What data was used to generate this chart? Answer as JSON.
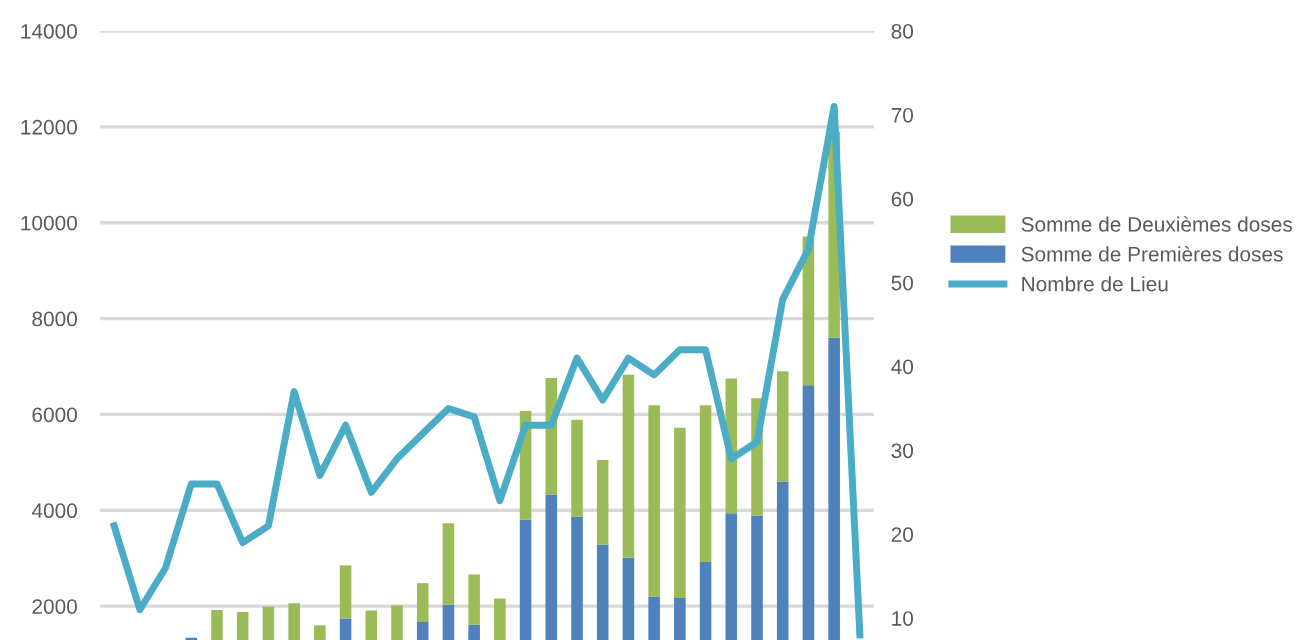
{
  "chart_data": {
    "type": "bar",
    "stacked": true,
    "categories": [
      null,
      null,
      null,
      null,
      null,
      null,
      null,
      null,
      null,
      null,
      null,
      null,
      null,
      null,
      null,
      null,
      null,
      null,
      null,
      null,
      null,
      null,
      null,
      null,
      null,
      null,
      null,
      null,
      null,
      null
    ],
    "series": [
      {
        "name": "Somme de Premières doses",
        "color": "#4f81bd",
        "values": [
          null,
          null,
          null,
          1340,
          null,
          null,
          null,
          null,
          null,
          1740,
          null,
          null,
          1670,
          2030,
          1610,
          null,
          3800,
          4330,
          3870,
          3280,
          3010,
          2200,
          2170,
          2920,
          3940,
          3890,
          4600,
          6610,
          7600,
          null
        ]
      },
      {
        "name": "Somme de Deuxièmes doses",
        "color": "#9bbb59",
        "values": [
          null,
          null,
          null,
          null,
          1920,
          1880,
          1990,
          2060,
          1600,
          1110,
          1910,
          2020,
          810,
          1700,
          1050,
          2160,
          2270,
          2430,
          2020,
          1770,
          3820,
          3990,
          3550,
          3270,
          2810,
          2450,
          2300,
          3100,
          4300,
          null
        ]
      },
      {
        "name": "Nombre de Lieu",
        "type": "line",
        "axis": "y2",
        "color": "#4bacc6",
        "values": [
          21,
          11,
          16,
          26,
          26,
          19,
          21,
          37,
          27,
          33,
          25,
          29,
          32,
          35,
          34,
          24,
          33,
          33,
          41,
          36,
          41,
          39,
          42,
          42,
          29,
          31,
          48,
          54,
          71,
          8
        ]
      }
    ],
    "ylim": [
      0,
      14000
    ],
    "yticks": [
      2000,
      4000,
      6000,
      8000,
      10000,
      12000,
      14000
    ],
    "y2lim": [
      0,
      80
    ],
    "y2ticks": [
      10,
      20,
      30,
      40,
      50,
      60,
      70,
      80
    ],
    "grid": "y",
    "legend": "right",
    "tick_labels": "y"
  }
}
